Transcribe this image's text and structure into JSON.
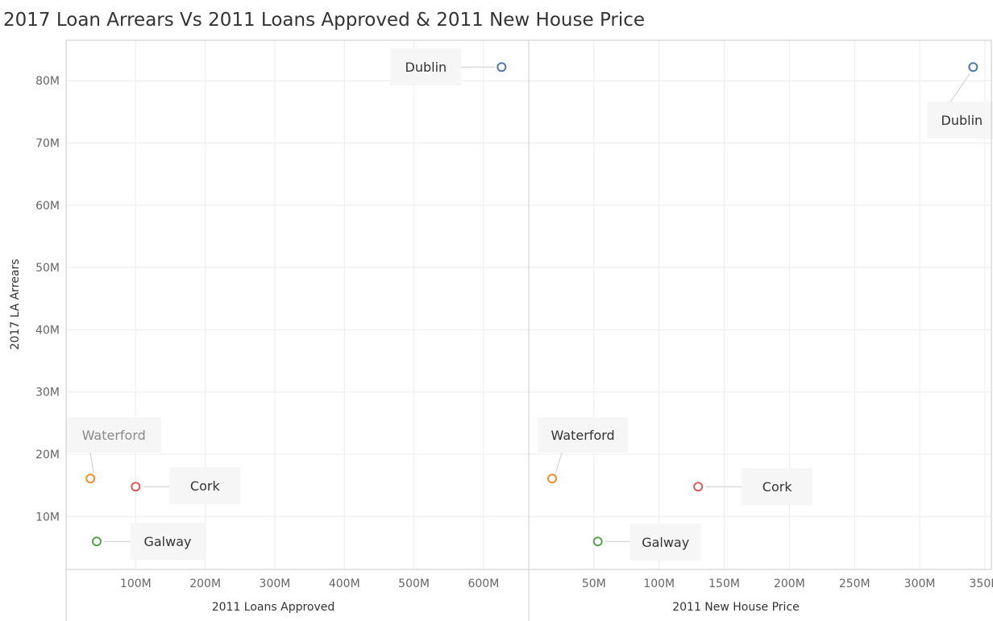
{
  "title": "2017 Loan Arrears Vs 2011 Loans Approved & 2011 New House Price",
  "chart_data": {
    "type": "scatter",
    "y": {
      "label": "2017 LA Arrears",
      "range": [
        1500000,
        86500000
      ],
      "ticks": [
        10000000,
        20000000,
        30000000,
        40000000,
        50000000,
        60000000,
        70000000,
        80000000
      ],
      "tick_labels": [
        "10M",
        "20M",
        "30M",
        "40M",
        "50M",
        "60M",
        "70M",
        "80M"
      ]
    },
    "panels": [
      {
        "xlabel": "2011 Loans Approved",
        "xlim": [
          0,
          665000000
        ],
        "x_ticks": [
          100000000,
          200000000,
          300000000,
          400000000,
          500000000,
          600000000
        ],
        "x_tick_labels": [
          "100M",
          "200M",
          "300M",
          "400M",
          "500M",
          "600M"
        ],
        "points": [
          {
            "name": "Dublin",
            "x": 626000000,
            "y": 82200000,
            "color": "#4e79a7"
          },
          {
            "name": "Waterford",
            "x": 35000000,
            "y": 16100000,
            "color": "#f28e2b"
          },
          {
            "name": "Cork",
            "x": 100000000,
            "y": 14800000,
            "color": "#e15759"
          },
          {
            "name": "Galway",
            "x": 44000000,
            "y": 6000000,
            "color": "#59a14f"
          }
        ]
      },
      {
        "xlabel": "2011 New House Price",
        "xlim": [
          0,
          355000000
        ],
        "x_ticks": [
          50000000,
          100000000,
          150000000,
          200000000,
          250000000,
          300000000,
          350000000
        ],
        "x_tick_labels": [
          "50M",
          "100M",
          "150M",
          "200M",
          "250M",
          "300M",
          "350M"
        ],
        "points": [
          {
            "name": "Dublin",
            "x": 341000000,
            "y": 82200000,
            "color": "#4e79a7"
          },
          {
            "name": "Waterford",
            "x": 18000000,
            "y": 16100000,
            "color": "#f28e2b"
          },
          {
            "name": "Cork",
            "x": 130000000,
            "y": 14800000,
            "color": "#e15759"
          },
          {
            "name": "Galway",
            "x": 53000000,
            "y": 6000000,
            "color": "#59a14f"
          }
        ]
      }
    ]
  }
}
